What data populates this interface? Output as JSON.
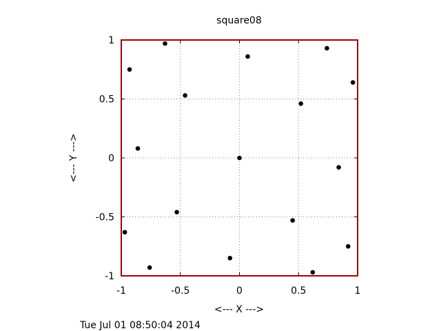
{
  "chart_data": {
    "type": "scatter",
    "title": "square08",
    "xlabel": "<--- X --->",
    "ylabel": "<--- Y --->",
    "xlim": [
      -1,
      1
    ],
    "ylim": [
      -1,
      1
    ],
    "xticks": [
      -1,
      -0.5,
      0,
      0.5,
      1
    ],
    "yticks": [
      -1,
      -0.5,
      0,
      0.5,
      1
    ],
    "xtick_labels": [
      "-1",
      "-0.5",
      "0",
      "0.5",
      "1"
    ],
    "ytick_labels": [
      "-1",
      "-0.5",
      "0",
      "0.5",
      "1"
    ],
    "grid": true,
    "frame_color": "#a00000",
    "marker_color": "#000000",
    "points": [
      {
        "x": -0.63,
        "y": 0.97
      },
      {
        "x": 0.07,
        "y": 0.86
      },
      {
        "x": 0.74,
        "y": 0.93
      },
      {
        "x": -0.93,
        "y": 0.75
      },
      {
        "x": 0.96,
        "y": 0.64
      },
      {
        "x": -0.46,
        "y": 0.53
      },
      {
        "x": 0.52,
        "y": 0.46
      },
      {
        "x": -0.86,
        "y": 0.08
      },
      {
        "x": 0.0,
        "y": 0.0
      },
      {
        "x": 0.84,
        "y": -0.08
      },
      {
        "x": -0.53,
        "y": -0.46
      },
      {
        "x": 0.45,
        "y": -0.53
      },
      {
        "x": -0.97,
        "y": -0.63
      },
      {
        "x": 0.92,
        "y": -0.75
      },
      {
        "x": -0.08,
        "y": -0.85
      },
      {
        "x": -0.76,
        "y": -0.93
      },
      {
        "x": 0.62,
        "y": -0.97
      }
    ]
  },
  "footer": {
    "timestamp": "Tue Jul 01 08:50:04 2014"
  }
}
